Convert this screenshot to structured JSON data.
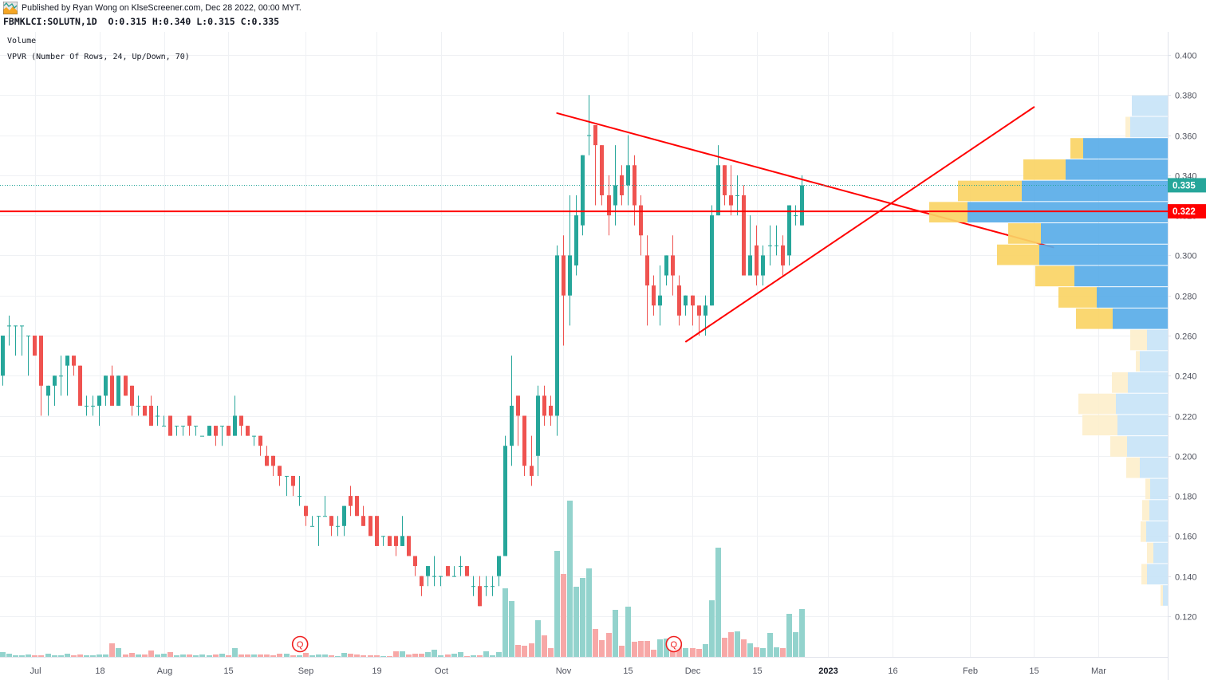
{
  "header": {
    "published_text": "Published by Ryan Wong on KlseScreener.com, Dec 28 2022, 00:00 MYT.",
    "symbol": "FBMKLCI:SOLUTN,1D",
    "ohlc": [
      {
        "label": "O:",
        "value": "0.315"
      },
      {
        "label": "H:",
        "value": "0.340"
      },
      {
        "label": "L:",
        "value": "0.315"
      },
      {
        "label": "C:",
        "value": "0.335"
      }
    ],
    "logo_icon": "chart-thumbnail-icon"
  },
  "legend": {
    "volume": "Volume",
    "vpvr": "VPVR (Number Of Rows, 24, Up/Down, 70)"
  },
  "colors": {
    "up": "#26a69a",
    "down": "#ef5350",
    "volume_up": "#93d3cd",
    "volume_down": "#f7a8a7",
    "vpvr_up": "#5aade9",
    "vpvr_down": "#fad466",
    "vpvr_up_light": "#c8e4f8",
    "vpvr_down_light": "#fdefcd",
    "drawing_line": "#ff0000",
    "last_price_label": "#26a69a",
    "horizontal_line_label": "#ff0000",
    "marker": "#f01e1e",
    "grid": "#eff1f4",
    "axis_line": "#e0e3eb",
    "axis_text": "#50535e"
  },
  "chart_data": {
    "type": "candlestick",
    "title": "FBMKLCI:SOLUTN, 1D",
    "symbol": "FBMKLCI:SOLUTN",
    "interval": "1D",
    "xlabel": "",
    "ylabel": "",
    "ylim": [
      0.105,
      0.405
    ],
    "grid": true,
    "legend": [
      "Volume",
      "VPVR (Number Of Rows, 24, Up/Down, 70)"
    ],
    "price_axis": {
      "ticks": [
        "0.400",
        "0.380",
        "0.360",
        "0.340",
        "0.320",
        "0.300",
        "0.280",
        "0.260",
        "0.240",
        "0.220",
        "0.200",
        "0.180",
        "0.160",
        "0.140",
        "0.120"
      ]
    },
    "time_axis": {
      "ticks": [
        {
          "label": "Jul",
          "bar": 5
        },
        {
          "label": "18",
          "bar": 15
        },
        {
          "label": "Aug",
          "bar": 25
        },
        {
          "label": "15",
          "bar": 35
        },
        {
          "label": "Sep",
          "bar": 47
        },
        {
          "label": "19",
          "bar": 58
        },
        {
          "label": "Oct",
          "bar": 68
        },
        {
          "label": "Nov",
          "bar": 87
        },
        {
          "label": "15",
          "bar": 97
        },
        {
          "label": "Dec",
          "bar": 107
        },
        {
          "label": "15",
          "bar": 117
        },
        {
          "label": "2023",
          "bar": 128,
          "bold": true
        },
        {
          "label": "16",
          "bar": 138
        },
        {
          "label": "Feb",
          "bar": 150
        },
        {
          "label": "15",
          "bar": 160
        },
        {
          "label": "Mar",
          "bar": 170
        }
      ]
    },
    "candle_fields": [
      "open",
      "high",
      "low",
      "close",
      "volume_relative"
    ],
    "candles": [
      [
        0.24,
        0.26,
        0.235,
        0.26,
        6
      ],
      [
        0.265,
        0.27,
        0.255,
        0.265,
        4
      ],
      [
        0.265,
        0.265,
        0.25,
        0.265,
        2
      ],
      [
        0.265,
        0.265,
        0.25,
        0.265,
        2
      ],
      [
        0.26,
        0.26,
        0.24,
        0.26,
        3
      ],
      [
        0.26,
        0.26,
        0.25,
        0.25,
        2
      ],
      [
        0.26,
        0.26,
        0.22,
        0.235,
        2
      ],
      [
        0.23,
        0.235,
        0.22,
        0.235,
        4
      ],
      [
        0.235,
        0.24,
        0.225,
        0.24,
        2
      ],
      [
        0.24,
        0.25,
        0.23,
        0.24,
        2
      ],
      [
        0.245,
        0.25,
        0.23,
        0.25,
        4
      ],
      [
        0.25,
        0.25,
        0.24,
        0.245,
        2
      ],
      [
        0.245,
        0.245,
        0.225,
        0.225,
        3
      ],
      [
        0.225,
        0.23,
        0.22,
        0.225,
        2
      ],
      [
        0.225,
        0.23,
        0.22,
        0.225,
        2
      ],
      [
        0.225,
        0.23,
        0.215,
        0.23,
        3
      ],
      [
        0.23,
        0.24,
        0.225,
        0.24,
        3
      ],
      [
        0.24,
        0.245,
        0.225,
        0.225,
        17
      ],
      [
        0.225,
        0.24,
        0.225,
        0.24,
        11
      ],
      [
        0.24,
        0.24,
        0.23,
        0.23,
        3
      ],
      [
        0.235,
        0.235,
        0.22,
        0.225,
        5
      ],
      [
        0.225,
        0.23,
        0.22,
        0.225,
        3
      ],
      [
        0.225,
        0.225,
        0.22,
        0.22,
        3
      ],
      [
        0.225,
        0.23,
        0.215,
        0.215,
        8
      ],
      [
        0.22,
        0.225,
        0.215,
        0.22,
        3
      ],
      [
        0.215,
        0.22,
        0.215,
        0.215,
        4
      ],
      [
        0.22,
        0.22,
        0.21,
        0.21,
        6
      ],
      [
        0.215,
        0.215,
        0.21,
        0.215,
        2
      ],
      [
        0.215,
        0.215,
        0.21,
        0.215,
        3
      ],
      [
        0.22,
        0.22,
        0.21,
        0.215,
        3
      ],
      [
        0.215,
        0.215,
        0.21,
        0.215,
        2
      ],
      [
        0.21,
        0.21,
        0.21,
        0.21,
        3
      ],
      [
        0.21,
        0.215,
        0.21,
        0.215,
        2
      ],
      [
        0.215,
        0.215,
        0.205,
        0.21,
        3
      ],
      [
        0.215,
        0.215,
        0.205,
        0.215,
        4
      ],
      [
        0.215,
        0.215,
        0.21,
        0.21,
        2
      ],
      [
        0.21,
        0.23,
        0.21,
        0.22,
        11
      ],
      [
        0.22,
        0.22,
        0.21,
        0.215,
        3
      ],
      [
        0.215,
        0.215,
        0.21,
        0.21,
        3
      ],
      [
        0.21,
        0.21,
        0.205,
        0.21,
        3
      ],
      [
        0.21,
        0.21,
        0.2,
        0.205,
        3
      ],
      [
        0.2,
        0.205,
        0.195,
        0.195,
        3
      ],
      [
        0.2,
        0.2,
        0.19,
        0.195,
        2
      ],
      [
        0.195,
        0.195,
        0.185,
        0.19,
        4
      ],
      [
        0.19,
        0.19,
        0.18,
        0.19,
        4
      ],
      [
        0.19,
        0.19,
        0.18,
        0.185,
        2
      ],
      [
        0.18,
        0.19,
        0.175,
        0.18,
        2
      ],
      [
        0.175,
        0.175,
        0.165,
        0.17,
        5
      ],
      [
        0.165,
        0.17,
        0.165,
        0.165,
        2
      ],
      [
        0.17,
        0.17,
        0.155,
        0.17,
        3
      ],
      [
        0.17,
        0.18,
        0.17,
        0.17,
        3
      ],
      [
        0.17,
        0.17,
        0.16,
        0.165,
        2
      ],
      [
        0.165,
        0.17,
        0.16,
        0.165,
        1
      ],
      [
        0.165,
        0.175,
        0.16,
        0.175,
        5
      ],
      [
        0.18,
        0.185,
        0.17,
        0.175,
        4
      ],
      [
        0.18,
        0.18,
        0.17,
        0.17,
        3
      ],
      [
        0.17,
        0.175,
        0.165,
        0.165,
        2
      ],
      [
        0.17,
        0.17,
        0.16,
        0.16,
        2
      ],
      [
        0.17,
        0.17,
        0.155,
        0.155,
        2
      ],
      [
        0.16,
        0.16,
        0.155,
        0.16,
        1
      ],
      [
        0.16,
        0.16,
        0.155,
        0.155,
        1
      ],
      [
        0.16,
        0.16,
        0.15,
        0.155,
        7
      ],
      [
        0.155,
        0.17,
        0.155,
        0.16,
        7
      ],
      [
        0.16,
        0.16,
        0.15,
        0.15,
        3
      ],
      [
        0.15,
        0.15,
        0.14,
        0.145,
        4
      ],
      [
        0.14,
        0.14,
        0.13,
        0.135,
        4
      ],
      [
        0.14,
        0.145,
        0.135,
        0.145,
        6
      ],
      [
        0.14,
        0.15,
        0.135,
        0.14,
        9
      ],
      [
        0.14,
        0.14,
        0.135,
        0.14,
        2
      ],
      [
        0.145,
        0.145,
        0.14,
        0.14,
        3
      ],
      [
        0.14,
        0.145,
        0.14,
        0.14,
        4
      ],
      [
        0.145,
        0.15,
        0.14,
        0.145,
        6
      ],
      [
        0.145,
        0.145,
        0.14,
        0.14,
        1
      ],
      [
        0.135,
        0.14,
        0.13,
        0.135,
        2
      ],
      [
        0.135,
        0.14,
        0.125,
        0.125,
        2
      ],
      [
        0.135,
        0.14,
        0.13,
        0.135,
        7
      ],
      [
        0.135,
        0.14,
        0.13,
        0.135,
        2
      ],
      [
        0.14,
        0.15,
        0.135,
        0.15,
        6
      ],
      [
        0.15,
        0.21,
        0.15,
        0.205,
        86
      ],
      [
        0.205,
        0.25,
        0.195,
        0.225,
        70
      ],
      [
        0.23,
        0.23,
        0.205,
        0.22,
        15
      ],
      [
        0.22,
        0.22,
        0.19,
        0.195,
        14
      ],
      [
        0.195,
        0.21,
        0.185,
        0.19,
        17
      ],
      [
        0.2,
        0.235,
        0.19,
        0.23,
        46
      ],
      [
        0.23,
        0.235,
        0.215,
        0.22,
        27
      ],
      [
        0.225,
        0.23,
        0.215,
        0.22,
        11
      ],
      [
        0.22,
        0.305,
        0.21,
        0.3,
        133
      ],
      [
        0.3,
        0.31,
        0.255,
        0.28,
        104
      ],
      [
        0.28,
        0.33,
        0.265,
        0.3,
        196
      ],
      [
        0.295,
        0.33,
        0.29,
        0.32,
        88
      ],
      [
        0.315,
        0.35,
        0.31,
        0.35,
        99
      ],
      [
        0.36,
        0.38,
        0.35,
        0.36,
        111
      ],
      [
        0.365,
        0.365,
        0.325,
        0.355,
        35
      ],
      [
        0.355,
        0.355,
        0.325,
        0.33,
        21
      ],
      [
        0.33,
        0.34,
        0.31,
        0.32,
        30
      ],
      [
        0.325,
        0.355,
        0.315,
        0.335,
        59
      ],
      [
        0.34,
        0.345,
        0.325,
        0.33,
        14
      ],
      [
        0.335,
        0.36,
        0.325,
        0.345,
        63
      ],
      [
        0.345,
        0.35,
        0.315,
        0.325,
        19
      ],
      [
        0.325,
        0.33,
        0.3,
        0.31,
        20
      ],
      [
        0.3,
        0.31,
        0.265,
        0.285,
        20
      ],
      [
        0.285,
        0.29,
        0.27,
        0.275,
        9
      ],
      [
        0.275,
        0.295,
        0.265,
        0.28,
        22
      ],
      [
        0.29,
        0.3,
        0.285,
        0.3,
        23
      ],
      [
        0.3,
        0.31,
        0.28,
        0.29,
        14
      ],
      [
        0.285,
        0.29,
        0.265,
        0.27,
        14
      ],
      [
        0.275,
        0.28,
        0.27,
        0.28,
        11
      ],
      [
        0.28,
        0.28,
        0.265,
        0.275,
        11
      ],
      [
        0.275,
        0.275,
        0.26,
        0.27,
        10
      ],
      [
        0.27,
        0.28,
        0.26,
        0.275,
        16
      ],
      [
        0.275,
        0.325,
        0.275,
        0.32,
        71
      ],
      [
        0.32,
        0.355,
        0.32,
        0.345,
        137
      ],
      [
        0.345,
        0.345,
        0.325,
        0.33,
        24
      ],
      [
        0.33,
        0.345,
        0.32,
        0.325,
        31
      ],
      [
        0.33,
        0.34,
        0.32,
        0.33,
        32
      ],
      [
        0.33,
        0.335,
        0.29,
        0.29,
        22
      ],
      [
        0.29,
        0.32,
        0.29,
        0.3,
        17
      ],
      [
        0.305,
        0.315,
        0.285,
        0.29,
        12
      ],
      [
        0.29,
        0.305,
        0.285,
        0.3,
        11
      ],
      [
        0.305,
        0.315,
        0.295,
        0.305,
        30
      ],
      [
        0.305,
        0.315,
        0.3,
        0.305,
        12
      ],
      [
        0.305,
        0.31,
        0.29,
        0.295,
        11
      ],
      [
        0.3,
        0.325,
        0.295,
        0.325,
        54
      ],
      [
        0.32,
        0.325,
        0.315,
        0.32,
        31
      ],
      [
        0.315,
        0.34,
        0.315,
        0.335,
        60
      ]
    ],
    "last_price": {
      "value": 0.335,
      "label": "0.335"
    },
    "horizontal_line": {
      "value": 0.322,
      "label": "0.322"
    },
    "trend_lines": [
      {
        "name": "descending-resistance-line",
        "from": {
          "bar": 86,
          "price": 0.371
        },
        "to": {
          "bar": 163,
          "price": 0.304
        }
      },
      {
        "name": "ascending-support-line",
        "from": {
          "bar": 106,
          "price": 0.257
        },
        "to": {
          "bar": 160,
          "price": 0.374
        }
      }
    ],
    "vpvr": {
      "number_of_rows": 24,
      "mode": "Up/Down",
      "value_area_pct": 70,
      "price_high": 0.38,
      "price_low": 0.125,
      "value_area_rows": [
        2,
        10
      ],
      "rows_up_down": [
        [
          45,
          0
        ],
        [
          47,
          6
        ],
        [
          106,
          16
        ],
        [
          128,
          53
        ],
        [
          183,
          80
        ],
        [
          251,
          48
        ],
        [
          159,
          41
        ],
        [
          161,
          53
        ],
        [
          117,
          49
        ],
        [
          89,
          48
        ],
        [
          69,
          46
        ],
        [
          26,
          21
        ],
        [
          35,
          5
        ],
        [
          50,
          20
        ],
        [
          65,
          47
        ],
        [
          63,
          44
        ],
        [
          51,
          21
        ],
        [
          35,
          17
        ],
        [
          22,
          6
        ],
        [
          23,
          9
        ],
        [
          27,
          7
        ],
        [
          18,
          8
        ],
        [
          26,
          7
        ],
        [
          6,
          3
        ]
      ]
    },
    "markers": [
      {
        "bar": 46,
        "label": "Q",
        "type": "earnings"
      },
      {
        "bar": 104,
        "label": "Q",
        "type": "earnings"
      }
    ]
  }
}
